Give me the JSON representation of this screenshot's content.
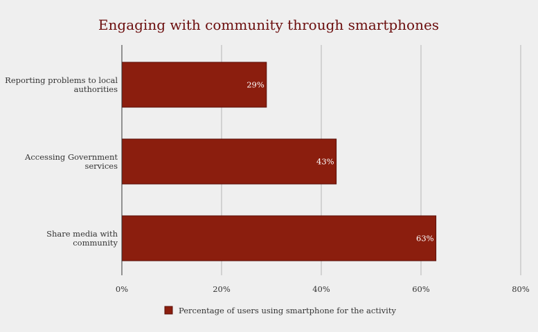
{
  "chart_data": {
    "type": "bar",
    "orientation": "horizontal",
    "title": "Engaging with community through smartphones",
    "categories": [
      [
        "Reporting problems to local",
        "authorities"
      ],
      [
        "Accessing Government",
        "services"
      ],
      [
        "Share media with",
        "community"
      ]
    ],
    "series": [
      {
        "name": "Percentage of users using smartphone for the activity",
        "values": [
          29,
          43,
          63
        ],
        "value_labels": [
          "29%",
          "43%",
          "63%"
        ],
        "color": "#8b1e0e",
        "stroke": "#5a0f08"
      }
    ],
    "xlim": [
      0,
      80
    ],
    "xticks": [
      0,
      20,
      40,
      60,
      80
    ],
    "xtick_labels": [
      "0%",
      "20%",
      "40%",
      "60%",
      "80%"
    ],
    "grid": true,
    "grid_color": "#b5b5b5",
    "legend": "bottom"
  }
}
